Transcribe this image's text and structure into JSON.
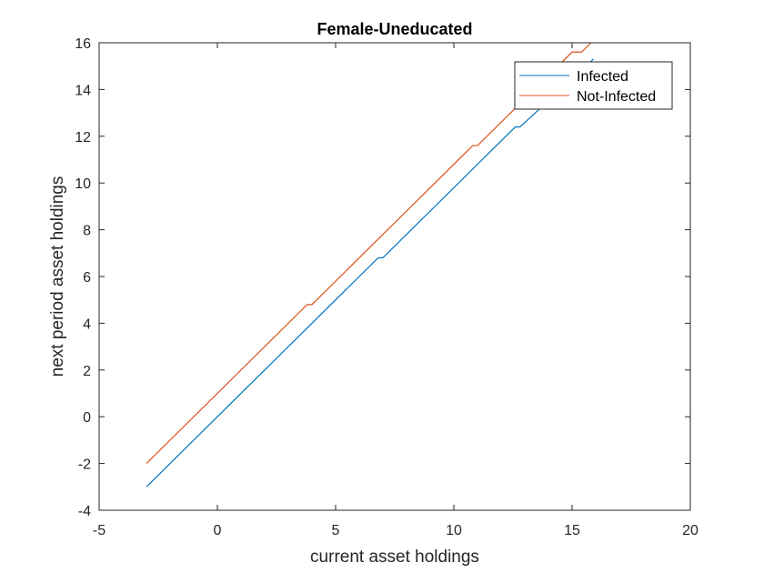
{
  "chart_data": {
    "type": "line",
    "title": "Female-Uneducated",
    "xlabel": "current asset holdings",
    "ylabel": "next period asset holdings",
    "xlim": [
      -5,
      20
    ],
    "ylim": [
      -4,
      16
    ],
    "xticks": [
      -5,
      0,
      5,
      10,
      15,
      20
    ],
    "yticks": [
      -4,
      -2,
      0,
      2,
      4,
      6,
      8,
      10,
      12,
      14,
      16
    ],
    "xtick_labels": [
      "-5",
      "0",
      "5",
      "10",
      "15",
      "20"
    ],
    "ytick_labels": [
      "-4",
      "-2",
      "0",
      "2",
      "4",
      "6",
      "8",
      "10",
      "12",
      "14",
      "16"
    ],
    "grid": false,
    "legend_position": "top-right",
    "series": [
      {
        "name": "Infected",
        "color": "#0072BD",
        "x": [
          -3,
          6.8,
          7.0,
          12.6,
          12.8,
          15.9
        ],
        "y": [
          -3,
          6.8,
          6.8,
          12.4,
          12.4,
          15.3
        ]
      },
      {
        "name": "Not-Infected",
        "color": "#D95319",
        "x": [
          -3,
          3.8,
          4.0,
          10.8,
          11.0,
          15.0,
          15.2,
          15.4,
          15.6,
          16.0
        ],
        "y": [
          -2,
          4.8,
          4.8,
          11.6,
          11.6,
          15.6,
          15.6,
          15.6,
          15.8,
          16.2
        ]
      }
    ]
  }
}
